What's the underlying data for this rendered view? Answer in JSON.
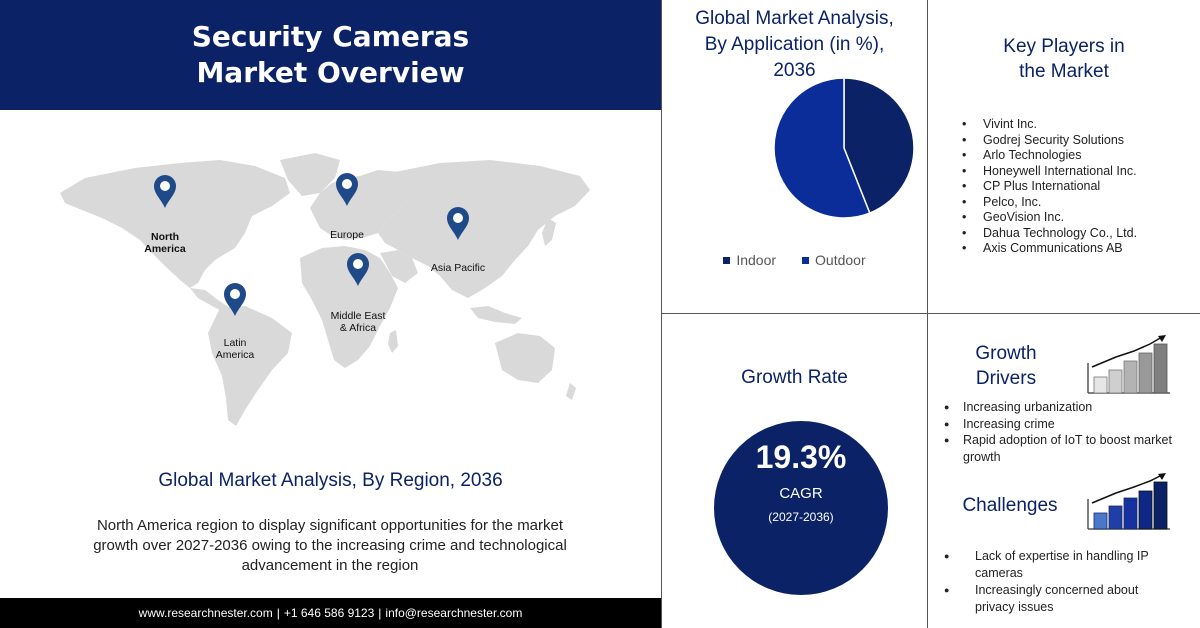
{
  "title": {
    "line1": "Security Cameras",
    "line2": "Market Overview"
  },
  "map": {
    "land_color": "#d9d9d9",
    "pin_color": "#1f4a8a",
    "regions": [
      {
        "name": "North America",
        "line1": "North",
        "line2": "America",
        "bold": true
      },
      {
        "name": "Europe",
        "line1": "Europe",
        "line2": ""
      },
      {
        "name": "Asia Pacific",
        "line1": "Asia Pacific",
        "line2": ""
      },
      {
        "name": "Middle East & Africa",
        "line1": "Middle East",
        "line2": "& Africa"
      },
      {
        "name": "Latin America",
        "line1": "Latin",
        "line2": "America"
      }
    ],
    "caption": "Global Market Analysis, By Region, 2036",
    "description": "North America region to display significant opportunities  for the market growth over 2027-2036 owing to the increasing crime and technological  advancement in the region"
  },
  "footer": {
    "website": "www.researchnester.com",
    "sep1": "|",
    "phone": "+1 646 586 9123",
    "sep2": "|",
    "email": "info@researchnester.com"
  },
  "chart_data": {
    "type": "pie",
    "title": "Global Market Analysis, By Application (in %), 2036",
    "title_lines": [
      "Global Market Analysis,",
      "By Application (in %),",
      "2036"
    ],
    "labels": [
      "Indoor",
      "Outdoor"
    ],
    "values": [
      44,
      56
    ],
    "colors": [
      "#0b2266",
      "#0a2d9a"
    ],
    "legend_position": "bottom"
  },
  "key_players": {
    "title_line1": "Key Players in",
    "title_line2": "the Market",
    "items": [
      "Vivint Inc.",
      "Godrej Security Solutions",
      "Arlo Technologies",
      "Honeywell International Inc.",
      "CP Plus International",
      "Pelco, Inc.",
      "GeoVision Inc.",
      "Dahua Technology Co., Ltd.",
      "Axis Communications  AB"
    ]
  },
  "growth_rate": {
    "title": "Growth Rate",
    "value": "19.3%",
    "label": "CAGR",
    "period": "(2027-2036)",
    "circle_color": "#0b2266"
  },
  "growth_drivers": {
    "title_line1": "Growth",
    "title_line2": "Drivers",
    "items": [
      "Increasing urbanization",
      "Increasing crime",
      "Rapid adoption of IoT to boost market growth"
    ]
  },
  "challenges": {
    "title": "Challenges",
    "items": [
      "Lack of expertise in handling IP cameras",
      "Increasingly concerned about privacy issues"
    ]
  },
  "icons": {
    "growth_chart": "rising-bar-chart-icon",
    "challenge_chart": "rising-bar-chart-icon",
    "map_pin": "map-pin-icon"
  }
}
